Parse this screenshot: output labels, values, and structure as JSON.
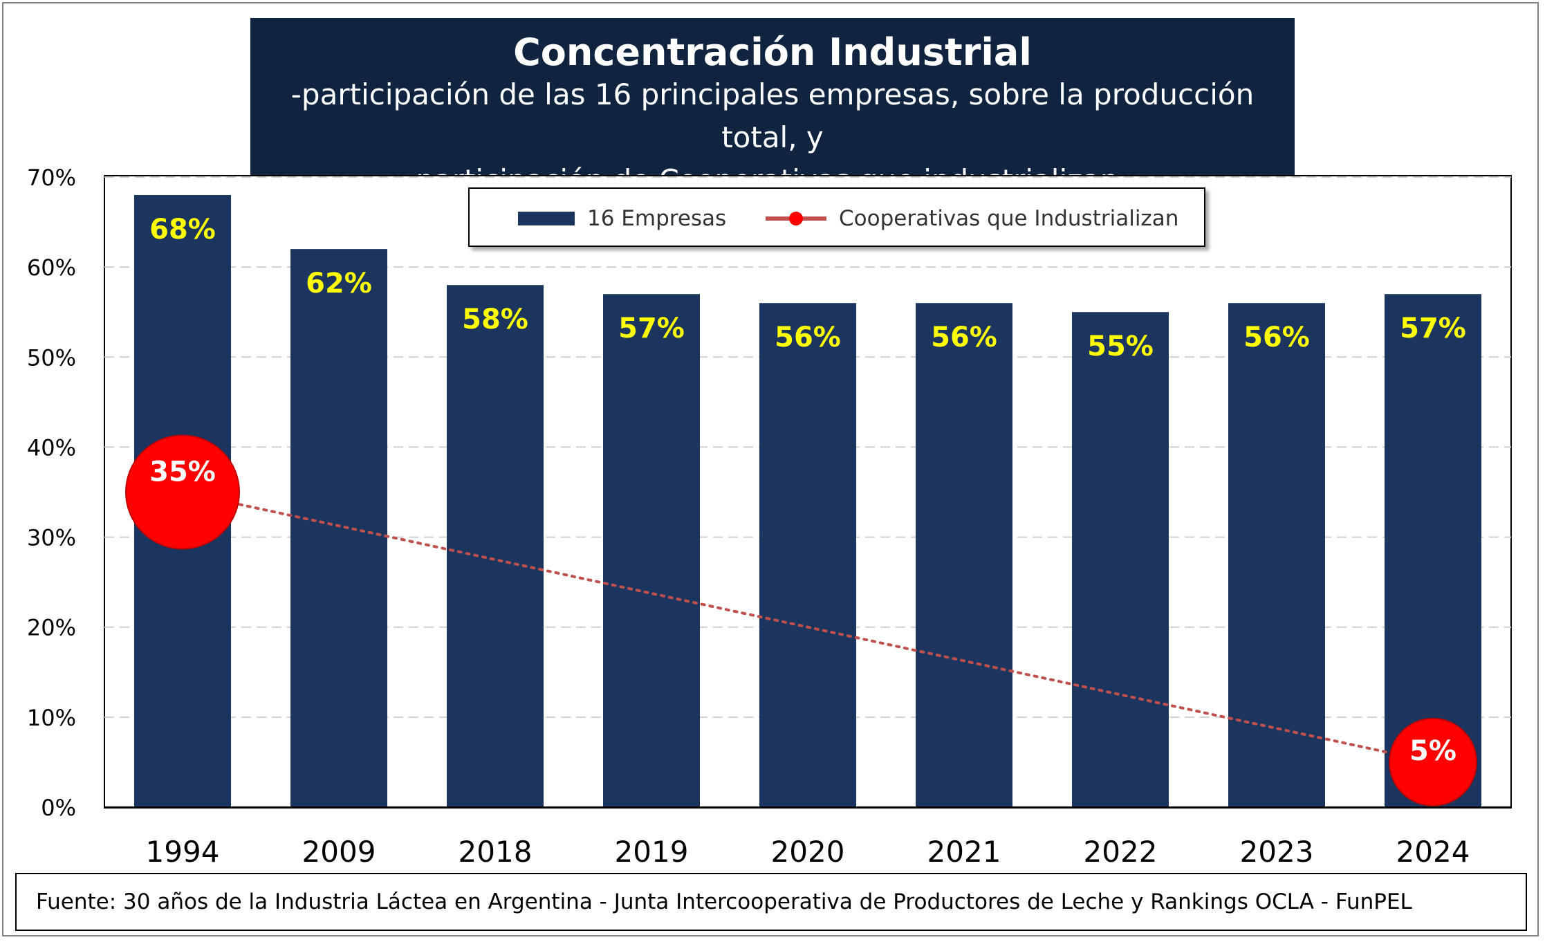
{
  "title": "Concentración Industrial",
  "subtitle_line1": "-participación de las 16 principales empresas, sobre la producción total, y",
  "subtitle_line2": "participación de Cooperativas que industrializan-",
  "source": "Fuente: 30 años de la Industria Láctea en Argentina - Junta Intercooperativa de Productores de Leche y Rankings OCLA - FunPEL",
  "colors": {
    "title_bg": "#10233f",
    "bar": "#1c355e",
    "bar_label": "#ffff00",
    "cooperative_marker": "#ff0000",
    "trend_line": "#c0504d"
  },
  "chart_data": {
    "type": "bar",
    "categories": [
      "1994",
      "2009",
      "2018",
      "2019",
      "2020",
      "2021",
      "2022",
      "2023",
      "2024"
    ],
    "series": [
      {
        "name": "16 Empresas",
        "type": "bar",
        "values": [
          68,
          62,
          58,
          57,
          56,
          56,
          55,
          56,
          57
        ],
        "labels": [
          "68%",
          "62%",
          "58%",
          "57%",
          "56%",
          "56%",
          "55%",
          "56%",
          "57%"
        ]
      },
      {
        "name": "Cooperativas que Industrializan",
        "type": "line",
        "points": [
          {
            "category": "1994",
            "value": 35,
            "label": "35%"
          },
          {
            "category": "2024",
            "value": 5,
            "label": "5%"
          }
        ],
        "line_style": "dotted"
      }
    ],
    "ylim": [
      0,
      70
    ],
    "yticks": [
      "0%",
      "10%",
      "20%",
      "30%",
      "40%",
      "50%",
      "60%",
      "70%"
    ],
    "ytick_values": [
      0,
      10,
      20,
      30,
      40,
      50,
      60,
      70
    ],
    "grid": "horizontal dashed",
    "legend": [
      "16 Empresas",
      "Cooperativas que Industrializan"
    ],
    "legend_position": "top-center"
  }
}
